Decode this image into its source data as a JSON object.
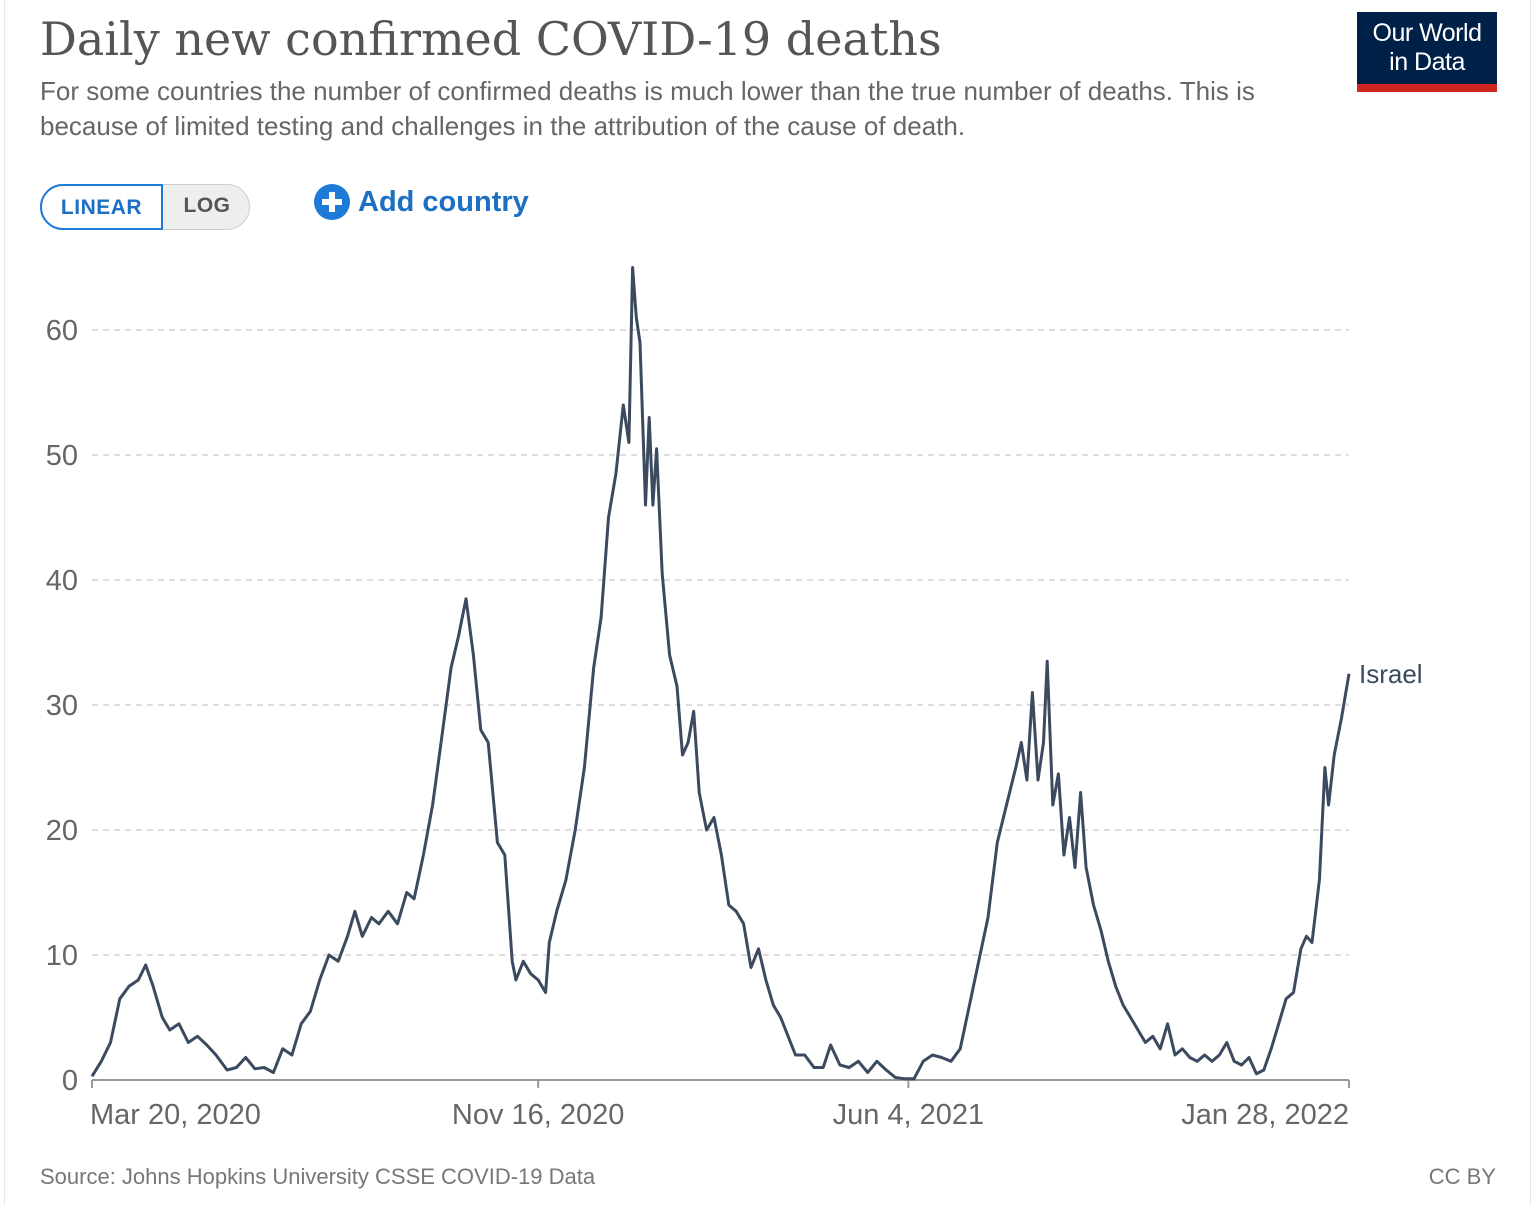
{
  "header": {
    "title": "Daily new confirmed COVID-19 deaths",
    "subtitle": "For some countries the number of confirmed deaths is much lower than the true number of deaths. This is because of limited testing and challenges in the attribution of the cause of death.",
    "logo_line1": "Our World",
    "logo_line2": "in Data"
  },
  "controls": {
    "linear_label": "LINEAR",
    "log_label": "LOG",
    "selected_scale": "LINEAR",
    "add_country_label": "Add country"
  },
  "footer": {
    "source": "Source: Johns Hopkins University CSSE COVID-19 Data",
    "license": "CC BY"
  },
  "colors": {
    "line": "#3b4a5e",
    "grid": "#dddddd",
    "axis": "#999999",
    "accent": "#1d7bd7",
    "logo_bg": "#002147",
    "logo_bar": "#ce261e"
  },
  "chart_data": {
    "type": "line",
    "title": "Daily new confirmed COVID-19 deaths",
    "xlabel": "",
    "ylabel": "",
    "x_start": "2020-03-20",
    "x_end": "2022-01-28",
    "xticks": [
      "Mar 20, 2020",
      "Nov 16, 2020",
      "Jun 4, 2021",
      "Jan 28, 2022"
    ],
    "xtick_dates": [
      "2020-03-20",
      "2020-11-16",
      "2021-06-04",
      "2022-01-28"
    ],
    "yticks": [
      0,
      10,
      20,
      30,
      40,
      50,
      60
    ],
    "ylim": [
      0,
      65
    ],
    "grid": "horizontal dashed",
    "series": [
      {
        "name": "Israel",
        "points": [
          [
            "2020-03-20",
            0.3
          ],
          [
            "2020-03-25",
            1.5
          ],
          [
            "2020-03-30",
            3
          ],
          [
            "2020-04-04",
            6.5
          ],
          [
            "2020-04-09",
            7.5
          ],
          [
            "2020-04-14",
            8
          ],
          [
            "2020-04-18",
            9.2
          ],
          [
            "2020-04-22",
            7.5
          ],
          [
            "2020-04-27",
            5
          ],
          [
            "2020-05-01",
            4
          ],
          [
            "2020-05-06",
            4.5
          ],
          [
            "2020-05-11",
            3
          ],
          [
            "2020-05-16",
            3.5
          ],
          [
            "2020-05-21",
            2.8
          ],
          [
            "2020-05-26",
            2
          ],
          [
            "2020-06-01",
            0.8
          ],
          [
            "2020-06-06",
            1
          ],
          [
            "2020-06-11",
            1.8
          ],
          [
            "2020-06-16",
            0.9
          ],
          [
            "2020-06-21",
            1
          ],
          [
            "2020-06-26",
            0.6
          ],
          [
            "2020-07-01",
            2.5
          ],
          [
            "2020-07-06",
            2
          ],
          [
            "2020-07-11",
            4.5
          ],
          [
            "2020-07-16",
            5.5
          ],
          [
            "2020-07-21",
            8
          ],
          [
            "2020-07-26",
            10
          ],
          [
            "2020-07-31",
            9.5
          ],
          [
            "2020-08-05",
            11.5
          ],
          [
            "2020-08-09",
            13.5
          ],
          [
            "2020-08-13",
            11.5
          ],
          [
            "2020-08-18",
            13
          ],
          [
            "2020-08-22",
            12.5
          ],
          [
            "2020-08-27",
            13.5
          ],
          [
            "2020-09-01",
            12.5
          ],
          [
            "2020-09-06",
            15
          ],
          [
            "2020-09-10",
            14.5
          ],
          [
            "2020-09-15",
            18
          ],
          [
            "2020-09-20",
            22
          ],
          [
            "2020-09-25",
            27.5
          ],
          [
            "2020-09-30",
            33
          ],
          [
            "2020-10-04",
            35.5
          ],
          [
            "2020-10-08",
            38.5
          ],
          [
            "2020-10-12",
            34
          ],
          [
            "2020-10-16",
            28
          ],
          [
            "2020-10-20",
            27
          ],
          [
            "2020-10-25",
            19
          ],
          [
            "2020-10-29",
            18
          ],
          [
            "2020-11-02",
            9.5
          ],
          [
            "2020-11-04",
            8
          ],
          [
            "2020-11-08",
            9.5
          ],
          [
            "2020-11-12",
            8.5
          ],
          [
            "2020-11-16",
            8
          ],
          [
            "2020-11-20",
            7
          ],
          [
            "2020-11-22",
            11
          ],
          [
            "2020-11-26",
            13.5
          ],
          [
            "2020-12-01",
            16
          ],
          [
            "2020-12-06",
            20
          ],
          [
            "2020-12-11",
            25
          ],
          [
            "2020-12-16",
            33
          ],
          [
            "2020-12-20",
            37
          ],
          [
            "2020-12-24",
            45
          ],
          [
            "2020-12-28",
            48.5
          ],
          [
            "2021-01-01",
            54
          ],
          [
            "2021-01-04",
            51
          ],
          [
            "2021-01-06",
            65
          ],
          [
            "2021-01-08",
            61
          ],
          [
            "2021-01-10",
            59
          ],
          [
            "2021-01-13",
            46
          ],
          [
            "2021-01-15",
            53
          ],
          [
            "2021-01-17",
            46
          ],
          [
            "2021-01-19",
            50.5
          ],
          [
            "2021-01-22",
            40.5
          ],
          [
            "2021-01-26",
            34
          ],
          [
            "2021-01-30",
            31.5
          ],
          [
            "2021-02-02",
            26
          ],
          [
            "2021-02-05",
            27
          ],
          [
            "2021-02-08",
            29.5
          ],
          [
            "2021-02-11",
            23
          ],
          [
            "2021-02-15",
            20
          ],
          [
            "2021-02-19",
            21
          ],
          [
            "2021-02-23",
            18
          ],
          [
            "2021-02-27",
            14
          ],
          [
            "2021-03-03",
            13.5
          ],
          [
            "2021-03-07",
            12.5
          ],
          [
            "2021-03-11",
            9
          ],
          [
            "2021-03-15",
            10.5
          ],
          [
            "2021-03-19",
            8
          ],
          [
            "2021-03-23",
            6
          ],
          [
            "2021-03-27",
            5
          ],
          [
            "2021-03-31",
            3.5
          ],
          [
            "2021-04-04",
            2
          ],
          [
            "2021-04-09",
            2
          ],
          [
            "2021-04-14",
            1
          ],
          [
            "2021-04-19",
            1
          ],
          [
            "2021-04-23",
            2.8
          ],
          [
            "2021-04-28",
            1.2
          ],
          [
            "2021-05-03",
            1
          ],
          [
            "2021-05-08",
            1.5
          ],
          [
            "2021-05-13",
            0.6
          ],
          [
            "2021-05-18",
            1.5
          ],
          [
            "2021-05-23",
            0.8
          ],
          [
            "2021-05-28",
            0.2
          ],
          [
            "2021-06-02",
            0.1
          ],
          [
            "2021-06-07",
            0.1
          ],
          [
            "2021-06-12",
            1.5
          ],
          [
            "2021-06-17",
            2
          ],
          [
            "2021-06-22",
            1.8
          ],
          [
            "2021-06-27",
            1.5
          ],
          [
            "2021-07-02",
            2.5
          ],
          [
            "2021-07-07",
            6
          ],
          [
            "2021-07-12",
            9.5
          ],
          [
            "2021-07-17",
            13
          ],
          [
            "2021-07-22",
            19
          ],
          [
            "2021-07-27",
            22
          ],
          [
            "2021-08-01",
            25
          ],
          [
            "2021-08-04",
            27
          ],
          [
            "2021-08-07",
            24
          ],
          [
            "2021-08-10",
            31
          ],
          [
            "2021-08-13",
            24
          ],
          [
            "2021-08-16",
            27
          ],
          [
            "2021-08-18",
            33.5
          ],
          [
            "2021-08-21",
            22
          ],
          [
            "2021-08-24",
            24.5
          ],
          [
            "2021-08-27",
            18
          ],
          [
            "2021-08-30",
            21
          ],
          [
            "2021-09-02",
            17
          ],
          [
            "2021-09-05",
            23
          ],
          [
            "2021-09-08",
            17
          ],
          [
            "2021-09-12",
            14
          ],
          [
            "2021-09-16",
            12
          ],
          [
            "2021-09-20",
            9.5
          ],
          [
            "2021-09-24",
            7.5
          ],
          [
            "2021-09-28",
            6
          ],
          [
            "2021-10-02",
            5
          ],
          [
            "2021-10-06",
            4
          ],
          [
            "2021-10-10",
            3
          ],
          [
            "2021-10-14",
            3.5
          ],
          [
            "2021-10-18",
            2.5
          ],
          [
            "2021-10-22",
            4.5
          ],
          [
            "2021-10-26",
            2
          ],
          [
            "2021-10-30",
            2.5
          ],
          [
            "2021-11-03",
            1.8
          ],
          [
            "2021-11-07",
            1.5
          ],
          [
            "2021-11-11",
            2
          ],
          [
            "2021-11-15",
            1.5
          ],
          [
            "2021-11-19",
            2
          ],
          [
            "2021-11-23",
            3
          ],
          [
            "2021-11-27",
            1.5
          ],
          [
            "2021-12-01",
            1.2
          ],
          [
            "2021-12-05",
            1.8
          ],
          [
            "2021-12-09",
            0.5
          ],
          [
            "2021-12-13",
            0.8
          ],
          [
            "2021-12-17",
            2.5
          ],
          [
            "2021-12-21",
            4.5
          ],
          [
            "2021-12-25",
            6.5
          ],
          [
            "2021-12-29",
            7
          ],
          [
            "2022-01-02",
            10.5
          ],
          [
            "2022-01-05",
            11.5
          ],
          [
            "2022-01-08",
            11
          ],
          [
            "2022-01-12",
            16
          ],
          [
            "2022-01-15",
            25
          ],
          [
            "2022-01-17",
            22
          ],
          [
            "2022-01-20",
            26
          ],
          [
            "2022-01-24",
            29
          ],
          [
            "2022-01-28",
            32.5
          ]
        ]
      }
    ]
  }
}
